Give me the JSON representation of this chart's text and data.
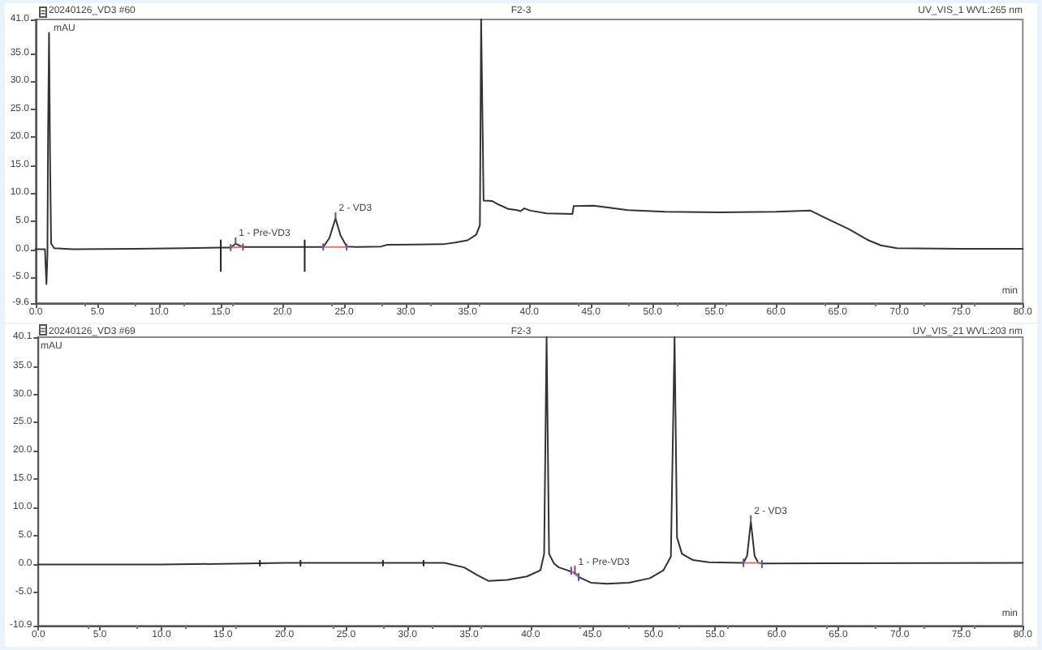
{
  "chart_data": [
    {
      "type": "line",
      "title": "20240126_VD3 #60",
      "subtitle": "F2-3",
      "xlabel": "min",
      "ylabel": "mAU",
      "annotations": [
        "UV_VIS_1 WVL:265 nm",
        {
          "text": "1 - Pre-VD3",
          "x": 16.2,
          "y": 1.0
        },
        {
          "text": "2 - VD3",
          "x": 24.3,
          "y": 5.5
        }
      ],
      "xlim": [
        0,
        80
      ],
      "xticks": [
        {
          "value": 0,
          "label": "0.0"
        },
        {
          "value": 5,
          "label": "5.0"
        },
        {
          "value": 10,
          "label": "10.0"
        },
        {
          "value": 15,
          "label": "15.0"
        },
        {
          "value": 20,
          "label": "20.0"
        },
        {
          "value": 25,
          "label": "25.0"
        },
        {
          "value": 30,
          "label": "30.0"
        },
        {
          "value": 35,
          "label": "35.0"
        },
        {
          "value": 40,
          "label": "40.0"
        },
        {
          "value": 45,
          "label": "45.0"
        },
        {
          "value": 50,
          "label": "50.0"
        },
        {
          "value": 55,
          "label": "55.0"
        },
        {
          "value": 60,
          "label": "60.0"
        },
        {
          "value": 65,
          "label": "65.0"
        },
        {
          "value": 70,
          "label": "70.0"
        },
        {
          "value": 75,
          "label": "75.0"
        },
        {
          "value": 80,
          "label": "80.0"
        }
      ],
      "ylim": [
        -9.6,
        41.0
      ],
      "yticks": [
        -9.6,
        {
          "value": -5,
          "label": "-5.0"
        },
        {
          "value": 0,
          "label": "0.0"
        },
        {
          "value": 5,
          "label": "5.0"
        },
        {
          "value": 10,
          "label": "10.0"
        },
        {
          "value": 15,
          "label": "15.0"
        },
        {
          "value": 20,
          "label": "20.0"
        },
        {
          "value": 25,
          "label": "25.0"
        },
        {
          "value": 30,
          "label": "30.0"
        },
        {
          "value": 35,
          "label": "35.0"
        },
        {
          "value": 41,
          "label": "41.0"
        }
      ],
      "series": [
        {
          "color": "#333333",
          "x": [
            0,
            0.75,
            0.87,
            0.95,
            1.0,
            1.08,
            1.17,
            1.25,
            1.5,
            3,
            8,
            12,
            15,
            15.8,
            16.2,
            16.8,
            20,
            23.3,
            23.8,
            24.3,
            24.7,
            25.2,
            26,
            28,
            28.5,
            33,
            34,
            35,
            35.7,
            36.0,
            36.1,
            36.3,
            37.0,
            37.5,
            38.3,
            39.0,
            39.3,
            39.6,
            40.1,
            41.4,
            43.5,
            43.6,
            45.2,
            48.0,
            51.0,
            55.4,
            60,
            62.8,
            64.1,
            65.9,
            67.5,
            68.5,
            69.8,
            75,
            80
          ],
          "values": [
            0,
            0,
            -6.2,
            -1.0,
            20,
            38.6,
            15,
            1.0,
            0.2,
            0.0,
            0.1,
            0.2,
            0.3,
            0.3,
            1.0,
            0.4,
            0.4,
            0.4,
            2.0,
            5.5,
            2.5,
            0.5,
            0.4,
            0.5,
            0.8,
            0.9,
            1.2,
            1.6,
            2.6,
            4.3,
            41.0,
            8.7,
            8.6,
            8.0,
            7.2,
            7.0,
            6.8,
            7.3,
            6.9,
            6.4,
            6.3,
            7.7,
            7.8,
            7.0,
            6.7,
            6.6,
            6.7,
            6.9,
            5.5,
            3.6,
            1.6,
            0.7,
            0.2,
            0.1,
            0.1
          ]
        },
        {
          "color": "#222222",
          "x": [
            15,
            15,
            null,
            21.8,
            21.8
          ],
          "values": [
            1.6,
            -3.9,
            null,
            1.6,
            -3.9
          ]
        },
        {
          "color": "#e57373",
          "x": [
            15.8,
            16.8,
            null,
            23.3,
            25.2
          ],
          "values": [
            0.3,
            0.4,
            null,
            0.4,
            0.4
          ]
        },
        {
          "color": "#6a4c9c",
          "x": [
            15.8,
            15.8,
            null,
            16.8,
            16.8,
            null,
            16.2,
            16.2,
            null,
            23.3,
            23.3,
            null,
            25.2,
            25.2,
            null,
            24.3,
            24.3
          ],
          "values": [
            -0.2,
            0.8,
            null,
            -0.1,
            0.9,
            null,
            1.0,
            2.0,
            null,
            -0.1,
            0.9,
            null,
            -0.1,
            0.9,
            null,
            5.5,
            6.5
          ]
        }
      ]
    },
    {
      "type": "line",
      "title": "20240126_VD3 #69",
      "subtitle": "F2-3",
      "xlabel": "min",
      "ylabel": "mAU",
      "annotations": [
        "UV_VIS_21 WVL:203 nm",
        {
          "text": "1 - Pre-VD3",
          "x": 43.6,
          "y": -1.6
        },
        {
          "text": "2 - VD3",
          "x": 57.9,
          "y": 7.5
        }
      ],
      "xlim": [
        0,
        80
      ],
      "xticks": [
        {
          "value": 0,
          "label": "0.0"
        },
        {
          "value": 5,
          "label": "5.0"
        },
        {
          "value": 10,
          "label": "10.0"
        },
        {
          "value": 15,
          "label": "15.0"
        },
        {
          "value": 20,
          "label": "20.0"
        },
        {
          "value": 25,
          "label": "25.0"
        },
        {
          "value": 30,
          "label": "30.0"
        },
        {
          "value": 35,
          "label": "35.0"
        },
        {
          "value": 40,
          "label": "40.0"
        },
        {
          "value": 45,
          "label": "45.0"
        },
        {
          "value": 50,
          "label": "50.0"
        },
        {
          "value": 55,
          "label": "55.0"
        },
        {
          "value": 60,
          "label": "60.0"
        },
        {
          "value": 65,
          "label": "65.0"
        },
        {
          "value": 70,
          "label": "70.0"
        },
        {
          "value": 75,
          "label": "75.0"
        },
        {
          "value": 80,
          "label": "80.0"
        }
      ],
      "ylim": [
        -10.9,
        40.1
      ],
      "yticks": [
        -10.9,
        {
          "value": -5,
          "label": "-5.0"
        },
        {
          "value": 0,
          "label": "0.0"
        },
        {
          "value": 5,
          "label": "5.0"
        },
        {
          "value": 10,
          "label": "10.0"
        },
        {
          "value": 15,
          "label": "15.0"
        },
        {
          "value": 20,
          "label": "20.0"
        },
        {
          "value": 25,
          "label": "25.0"
        },
        {
          "value": 30,
          "label": "30.0"
        },
        {
          "value": 35,
          "label": "35.0"
        },
        40.1
      ],
      "series": [
        {
          "color": "#333333",
          "x": [
            0,
            10,
            17,
            20,
            33,
            34.6,
            35.7,
            36.6,
            38.1,
            39.7,
            40.8,
            41.1,
            41.3,
            41.5,
            41.9,
            42.3,
            43.0,
            43.6,
            44.0,
            44.9,
            46.2,
            48.0,
            49.7,
            50.8,
            51.4,
            51.7,
            51.9,
            52.3,
            53.2,
            54.5,
            57.3,
            57.6,
            57.9,
            58.2,
            58.5,
            58.9,
            80
          ],
          "values": [
            -0.1,
            -0.1,
            0.1,
            0.2,
            0.2,
            -0.6,
            -2.0,
            -3.0,
            -2.8,
            -2.2,
            -1.1,
            1.8,
            40.1,
            1.8,
            0.1,
            -0.6,
            -1.1,
            -1.6,
            -2.4,
            -3.3,
            -3.5,
            -3.3,
            -2.5,
            -1.1,
            1.3,
            40.1,
            4.7,
            1.8,
            0.7,
            0.3,
            0.2,
            1.5,
            7.5,
            1.5,
            0.2,
            0.1,
            0.2
          ]
        },
        {
          "color": "#222222",
          "x": [
            18.0,
            18.0,
            null,
            21.3,
            21.3,
            null,
            28.0,
            28.0,
            null,
            31.3,
            31.3
          ],
          "values": [
            -0.3,
            0.6,
            null,
            -0.3,
            0.6,
            null,
            -0.3,
            0.6,
            null,
            -0.3,
            0.6
          ]
        },
        {
          "color": "#e57373",
          "x": [
            43.3,
            43.9,
            null,
            57.3,
            58.8
          ],
          "values": [
            -1.3,
            -2.3,
            null,
            0.2,
            0.2
          ]
        },
        {
          "color": "#6a4c9c",
          "x": [
            43.3,
            43.3,
            null,
            43.9,
            43.9,
            null,
            43.6,
            43.6,
            null,
            57.3,
            57.3,
            null,
            58.8,
            58.8,
            null,
            57.9,
            57.9
          ],
          "values": [
            -1.8,
            -0.6,
            null,
            -2.9,
            -1.7,
            null,
            -1.6,
            -0.4,
            null,
            -0.4,
            0.8,
            null,
            -0.6,
            0.6,
            null,
            7.5,
            8.5
          ]
        }
      ]
    }
  ]
}
